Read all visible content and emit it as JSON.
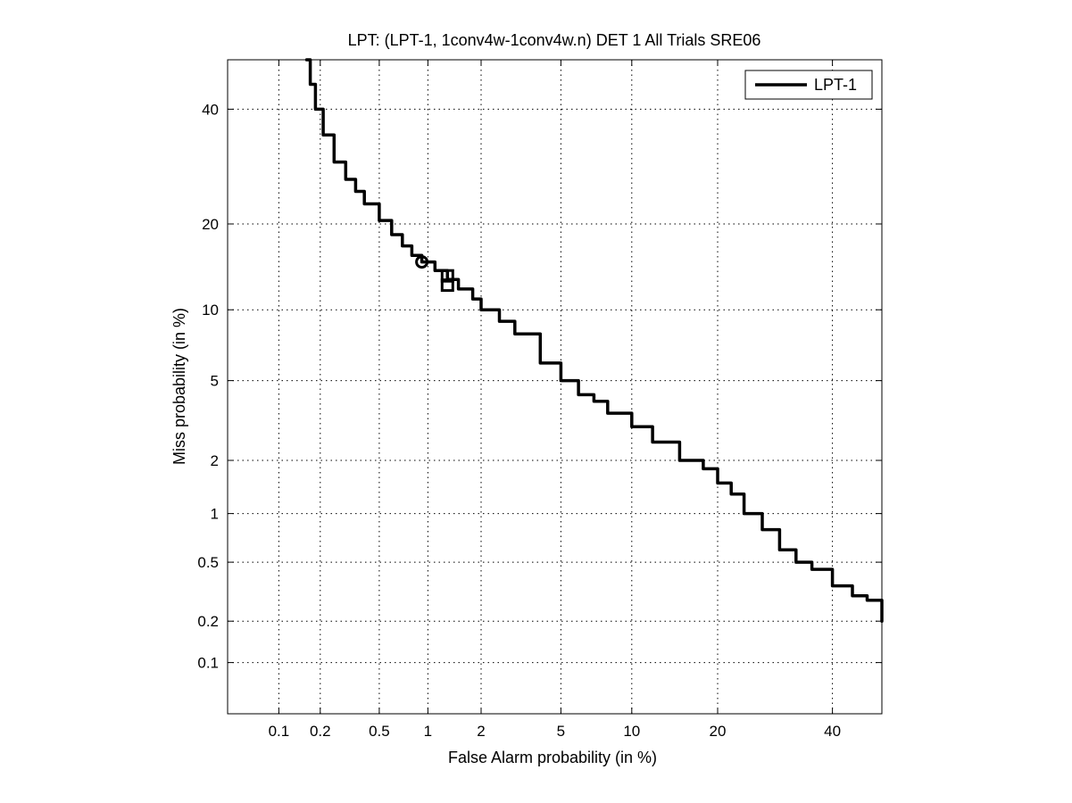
{
  "chart_data": {
    "type": "line",
    "title": "LPT: (LPT-1, 1conv4w-1conv4w.n) DET 1 All Trials SRE06",
    "xlabel": "False Alarm probability (in %)",
    "ylabel": "Miss probability (in %)",
    "scale": "normal-deviate (probit)",
    "xlim": [
      0.04,
      50
    ],
    "ylim": [
      0.04,
      50
    ],
    "x_ticks": [
      0.1,
      0.2,
      0.5,
      1,
      2,
      5,
      10,
      20,
      40
    ],
    "x_tick_labels": [
      "0.1",
      "0.2",
      "0.5",
      "1",
      "2",
      "5",
      "10",
      "20",
      "40"
    ],
    "y_ticks": [
      0.1,
      0.2,
      0.5,
      1,
      2,
      5,
      10,
      20,
      40
    ],
    "y_tick_labels": [
      "0.1",
      "0.2",
      "0.5",
      "1",
      "2",
      "5",
      "10",
      "20",
      "40"
    ],
    "grid": true,
    "legend_position": "top-right",
    "series": [
      {
        "name": "LPT-1",
        "color": "#000000",
        "points": [
          [
            0.16,
            50
          ],
          [
            0.17,
            45
          ],
          [
            0.185,
            40
          ],
          [
            0.21,
            35
          ],
          [
            0.25,
            30
          ],
          [
            0.3,
            27
          ],
          [
            0.35,
            25
          ],
          [
            0.4,
            23
          ],
          [
            0.5,
            20.5
          ],
          [
            0.6,
            18.5
          ],
          [
            0.7,
            17
          ],
          [
            0.8,
            15.8
          ],
          [
            0.92,
            15
          ],
          [
            1.1,
            14
          ],
          [
            1.3,
            13
          ],
          [
            1.5,
            12
          ],
          [
            1.8,
            11
          ],
          [
            2.0,
            10
          ],
          [
            2.5,
            9
          ],
          [
            3.0,
            8
          ],
          [
            4.0,
            6
          ],
          [
            5.0,
            5
          ],
          [
            6.0,
            4.3
          ],
          [
            7.0,
            4
          ],
          [
            8.0,
            3.5
          ],
          [
            10.0,
            3
          ],
          [
            12.0,
            2.5
          ],
          [
            15.0,
            2
          ],
          [
            18.0,
            1.8
          ],
          [
            20.0,
            1.5
          ],
          [
            22.0,
            1.3
          ],
          [
            24.0,
            1
          ],
          [
            27.0,
            0.8
          ],
          [
            30.0,
            0.6
          ],
          [
            33.0,
            0.5
          ],
          [
            36.0,
            0.45
          ],
          [
            40.0,
            0.35
          ],
          [
            44.0,
            0.3
          ],
          [
            47.0,
            0.28
          ],
          [
            50.0,
            0.2
          ]
        ]
      }
    ],
    "markers": [
      {
        "shape": "circle",
        "x": 0.92,
        "y": 15
      },
      {
        "shape": "square",
        "x": 1.3,
        "y": 13.4
      },
      {
        "shape": "square",
        "x": 1.3,
        "y": 12.4
      }
    ]
  }
}
